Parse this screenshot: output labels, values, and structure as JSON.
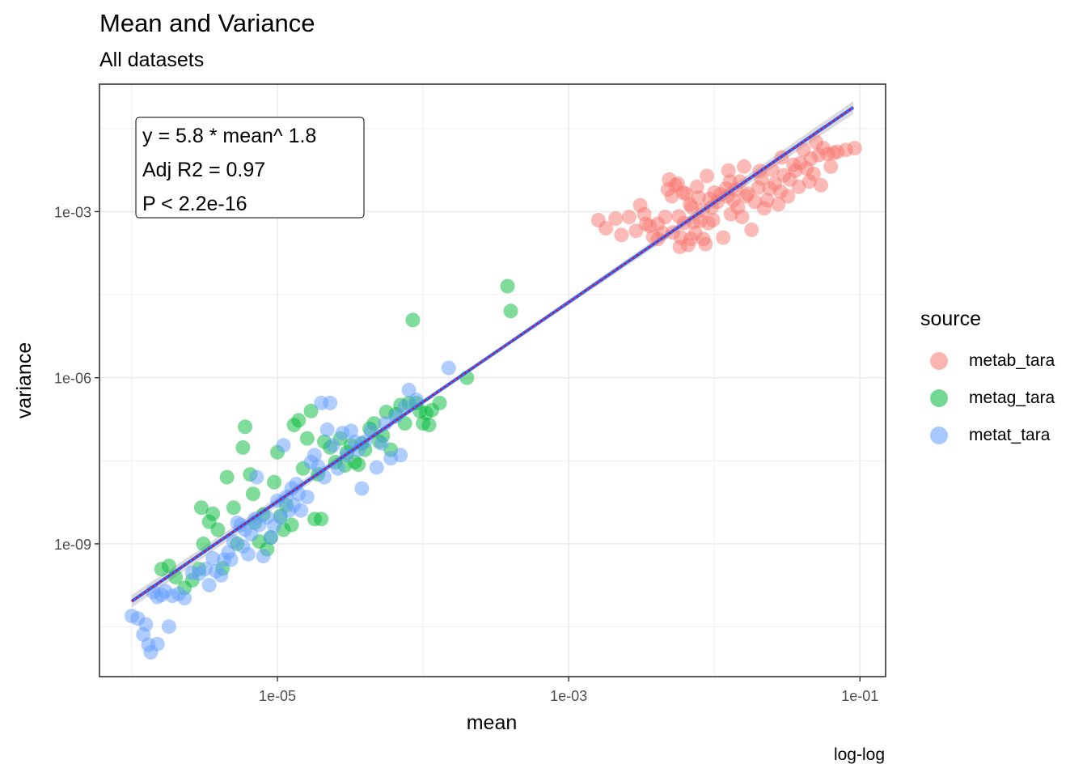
{
  "chart_data": {
    "type": "scatter",
    "title": "Mean and Variance",
    "subtitle": "All datasets",
    "caption": "log-log",
    "xlabel": "mean",
    "ylabel": "variance",
    "x_scale": "log10",
    "y_scale": "log10",
    "xlim": [
      6e-07,
      0.15
    ],
    "ylim": [
      4e-12,
      0.2
    ],
    "x_ticks": [
      {
        "value": 1e-05,
        "label": "1e-05"
      },
      {
        "value": 0.001,
        "label": "1e-03"
      },
      {
        "value": 0.1,
        "label": "1e-01"
      }
    ],
    "y_ticks": [
      {
        "value": 1e-09,
        "label": "1e-09"
      },
      {
        "value": 1e-06,
        "label": "1e-06"
      },
      {
        "value": 0.001,
        "label": "1e-03"
      }
    ],
    "grid": true,
    "legend_title": "source",
    "legend_position": "right",
    "fit": {
      "type": "power",
      "coefficient": 5.8,
      "exponent": 1.8,
      "x_range": [
        1e-06,
        0.09
      ],
      "annotation": [
        "y =  5.8 * mean^ 1.8",
        "Adj R2 =  0.97",
        "P < 2.2e-16"
      ]
    },
    "series": [
      {
        "name": "metab_tara",
        "color": "#F8766D",
        "points": [
          [
            0.0016,
            0.0007
          ],
          [
            0.0018,
            0.0005
          ],
          [
            0.0021,
            0.00075
          ],
          [
            0.0023,
            0.00038
          ],
          [
            0.0026,
            0.0008
          ],
          [
            0.0029,
            0.00045
          ],
          [
            0.0031,
            0.0013
          ],
          [
            0.0033,
            0.0009
          ],
          [
            0.0034,
            0.0006
          ],
          [
            0.0036,
            0.00055
          ],
          [
            0.0038,
            0.00035
          ],
          [
            0.0041,
            0.00032
          ],
          [
            0.0041,
            0.0006
          ],
          [
            0.0044,
            0.00041
          ],
          [
            0.0046,
            0.0008
          ],
          [
            0.0048,
            0.0025
          ],
          [
            0.0049,
            0.0038
          ],
          [
            0.0051,
            0.0019
          ],
          [
            0.0052,
            0.00042
          ],
          [
            0.0054,
            0.003
          ],
          [
            0.0056,
            0.0032
          ],
          [
            0.0057,
            0.00082
          ],
          [
            0.0058,
            0.00023
          ],
          [
            0.0059,
            0.00034
          ],
          [
            0.0061,
            0.0022
          ],
          [
            0.0062,
            0.00062
          ],
          [
            0.0064,
            0.0021
          ],
          [
            0.0066,
            0.00025
          ],
          [
            0.0068,
            0.00135
          ],
          [
            0.0069,
            0.00032
          ],
          [
            0.007,
            0.0012
          ],
          [
            0.0072,
            0.00065
          ],
          [
            0.0074,
            0.00041
          ],
          [
            0.0076,
            0.0028
          ],
          [
            0.0078,
            0.0018
          ],
          [
            0.008,
            0.00068
          ],
          [
            0.0083,
            0.00105
          ],
          [
            0.0084,
            0.00032
          ],
          [
            0.0087,
            0.00026
          ],
          [
            0.0089,
            0.0044
          ],
          [
            0.0091,
            0.00062
          ],
          [
            0.0093,
            0.0017
          ],
          [
            0.0096,
            0.0012
          ],
          [
            0.0098,
            0.0007
          ],
          [
            0.01,
            0.0022
          ],
          [
            0.0105,
            0.0015
          ],
          [
            0.011,
            0.00205
          ],
          [
            0.0115,
            0.00034
          ],
          [
            0.012,
            0.0026
          ],
          [
            0.0123,
            0.0019
          ],
          [
            0.0125,
            0.0055
          ],
          [
            0.0128,
            0.0035
          ],
          [
            0.013,
            0.0009
          ],
          [
            0.0135,
            0.0016
          ],
          [
            0.014,
            0.0025
          ],
          [
            0.0145,
            0.0012
          ],
          [
            0.015,
            0.0035
          ],
          [
            0.0155,
            0.0008
          ],
          [
            0.016,
            0.0065
          ],
          [
            0.0165,
            0.0019
          ],
          [
            0.017,
            0.0021
          ],
          [
            0.018,
            0.00047
          ],
          [
            0.019,
            0.0015
          ],
          [
            0.02,
            0.0027
          ],
          [
            0.0205,
            0.0054
          ],
          [
            0.021,
            0.004
          ],
          [
            0.022,
            0.00115
          ],
          [
            0.023,
            0.0016
          ],
          [
            0.024,
            0.0026
          ],
          [
            0.025,
            0.0057
          ],
          [
            0.026,
            0.0032
          ],
          [
            0.0275,
            0.00135
          ],
          [
            0.0285,
            0.0023
          ],
          [
            0.029,
            0.0095
          ],
          [
            0.03,
            0.0045
          ],
          [
            0.032,
            0.0019
          ],
          [
            0.033,
            0.0038
          ],
          [
            0.035,
            0.007
          ],
          [
            0.036,
            0.0055
          ],
          [
            0.038,
            0.0028
          ],
          [
            0.039,
            0.0075
          ],
          [
            0.041,
            0.013
          ],
          [
            0.043,
            0.006
          ],
          [
            0.045,
            0.0035
          ],
          [
            0.046,
            0.009
          ],
          [
            0.048,
            0.0048
          ],
          [
            0.05,
            0.018
          ],
          [
            0.052,
            0.0105
          ],
          [
            0.054,
            0.003
          ],
          [
            0.056,
            0.014
          ],
          [
            0.06,
            0.011
          ],
          [
            0.063,
            0.0065
          ],
          [
            0.066,
            0.0115
          ],
          [
            0.07,
            0.012
          ],
          [
            0.08,
            0.013
          ],
          [
            0.092,
            0.014
          ]
        ]
      },
      {
        "name": "metag_tara",
        "color": "#00BA38",
        "points": [
          [
            1.6e-06,
            3.5e-10
          ],
          [
            1.8e-06,
            4e-10
          ],
          [
            2e-06,
            2.5e-10
          ],
          [
            2.3e-06,
            1.6e-10
          ],
          [
            2.6e-06,
            2.2e-10
          ],
          [
            2.9e-06,
            3.5e-10
          ],
          [
            3e-06,
            4.5e-09
          ],
          [
            3.1e-06,
            1e-09
          ],
          [
            3.4e-06,
            2.5e-09
          ],
          [
            3.6e-06,
            3.5e-09
          ],
          [
            3.9e-06,
            1.8e-09
          ],
          [
            4.2e-06,
            3.6e-10
          ],
          [
            4.5e-06,
            1.6e-08
          ],
          [
            5e-06,
            4.5e-09
          ],
          [
            5.3e-06,
            1e-09
          ],
          [
            5.8e-06,
            5.5e-08
          ],
          [
            6e-06,
            1.3e-07
          ],
          [
            6.5e-06,
            1.8e-08
          ],
          [
            6.8e-06,
            8e-09
          ],
          [
            7e-06,
            2.4e-09
          ],
          [
            7.5e-06,
            1.1e-09
          ],
          [
            8e-06,
            3.4e-09
          ],
          [
            8.5e-06,
            8e-10
          ],
          [
            9e-06,
            1.3e-09
          ],
          [
            9.5e-06,
            1.3e-08
          ],
          [
            1e-05,
            4.5e-08
          ],
          [
            1.05e-05,
            3.2e-09
          ],
          [
            1.1e-05,
            1.8e-09
          ],
          [
            1.15e-05,
            5e-09
          ],
          [
            1.25e-05,
            2.2e-09
          ],
          [
            1.3e-05,
            1.4e-07
          ],
          [
            1.4e-05,
            1.7e-07
          ],
          [
            1.5e-05,
            2.3e-08
          ],
          [
            1.6e-05,
            8e-08
          ],
          [
            1.7e-05,
            2.5e-07
          ],
          [
            1.8e-05,
            2.8e-09
          ],
          [
            1.9e-05,
            1.8e-08
          ],
          [
            2e-05,
            2.8e-09
          ],
          [
            2.1e-05,
            7e-08
          ],
          [
            2.3e-05,
            5.5e-08
          ],
          [
            2.5e-05,
            3e-08
          ],
          [
            2.7e-05,
            8e-08
          ],
          [
            2.9e-05,
            2.6e-08
          ],
          [
            3e-05,
            4.5e-08
          ],
          [
            3.2e-05,
            6e-08
          ],
          [
            3.4e-05,
            3e-08
          ],
          [
            3.6e-05,
            2.7e-08
          ],
          [
            3.8e-05,
            6.5e-08
          ],
          [
            4e-05,
            5e-08
          ],
          [
            4.3e-05,
            1.2e-07
          ],
          [
            4.6e-05,
            1.5e-07
          ],
          [
            5e-05,
            7e-08
          ],
          [
            5.3e-05,
            9e-08
          ],
          [
            5.6e-05,
            2.4e-07
          ],
          [
            6e-05,
            5e-08
          ],
          [
            6.5e-05,
            2.2e-07
          ],
          [
            7e-05,
            3.2e-07
          ],
          [
            7.5e-05,
            1.5e-07
          ],
          [
            8e-05,
            3.5e-07
          ],
          [
            8.5e-05,
            1.1e-05
          ],
          [
            9e-05,
            3.5e-07
          ],
          [
            9.5e-05,
            2.5e-07
          ],
          [
            0.0001,
            1.5e-07
          ],
          [
            0.000105,
            2.3e-07
          ],
          [
            0.00011,
            1.4e-07
          ],
          [
            0.000115,
            2.6e-07
          ],
          [
            0.00013,
            3.5e-07
          ],
          [
            0.0002,
            1e-06
          ],
          [
            0.00038,
            4.5e-05
          ],
          [
            0.0004,
            1.6e-05
          ]
        ]
      },
      {
        "name": "metat_tara",
        "color": "#619CFF",
        "points": [
          [
            1e-06,
            5e-11
          ],
          [
            1.1e-06,
            4.5e-11
          ],
          [
            1.2e-06,
            2.3e-11
          ],
          [
            1.25e-06,
            3.5e-11
          ],
          [
            1.3e-06,
            1.5e-11
          ],
          [
            1.35e-06,
            1.1e-11
          ],
          [
            1.4e-06,
            1.35e-10
          ],
          [
            1.5e-06,
            1.1e-10
          ],
          [
            1.5e-06,
            1.55e-11
          ],
          [
            1.6e-06,
            1.2e-10
          ],
          [
            1.7e-06,
            1.4e-10
          ],
          [
            1.8e-06,
            3.2e-11
          ],
          [
            1.9e-06,
            1.15e-10
          ],
          [
            2.1e-06,
            1.25e-10
          ],
          [
            2.3e-06,
            1.05e-10
          ],
          [
            2.6e-06,
            3e-10
          ],
          [
            2.9e-06,
            2.9e-10
          ],
          [
            3.2e-06,
            3.5e-10
          ],
          [
            3.4e-06,
            1.8e-10
          ],
          [
            3.6e-06,
            5.5e-10
          ],
          [
            3.8e-06,
            3.2e-10
          ],
          [
            4.1e-06,
            2.7e-10
          ],
          [
            4.3e-06,
            5.2e-10
          ],
          [
            4.6e-06,
            7e-10
          ],
          [
            4.8e-06,
            5.2e-10
          ],
          [
            5e-06,
            1.1e-09
          ],
          [
            5.3e-06,
            2.4e-09
          ],
          [
            5.6e-06,
            2.2e-09
          ],
          [
            5.8e-06,
            9e-10
          ],
          [
            6e-06,
            1.8e-09
          ],
          [
            6.3e-06,
            6.5e-10
          ],
          [
            6.6e-06,
            1.5e-09
          ],
          [
            7e-06,
            2.8e-09
          ],
          [
            7.2e-06,
            1.6e-08
          ],
          [
            7.5e-06,
            2.2e-09
          ],
          [
            8e-06,
            6e-10
          ],
          [
            8.5e-06,
            3e-09
          ],
          [
            9e-06,
            1.3e-09
          ],
          [
            9.5e-06,
            2.1e-09
          ],
          [
            1e-05,
            6e-09
          ],
          [
            1.05e-05,
            3e-09
          ],
          [
            1.1e-05,
            6e-08
          ],
          [
            1.15e-05,
            7e-09
          ],
          [
            1.2e-05,
            4e-09
          ],
          [
            1.25e-05,
            1e-08
          ],
          [
            1.3e-05,
            5e-09
          ],
          [
            1.35e-05,
            1.2e-08
          ],
          [
            1.4e-05,
            8e-09
          ],
          [
            1.45e-05,
            4e-09
          ],
          [
            1.6e-05,
            7e-09
          ],
          [
            1.7e-05,
            3e-08
          ],
          [
            1.8e-05,
            4e-08
          ],
          [
            1.9e-05,
            2.5e-08
          ],
          [
            2e-05,
            3.5e-07
          ],
          [
            2.1e-05,
            1.6e-08
          ],
          [
            2.2e-05,
            1.15e-07
          ],
          [
            2.3e-05,
            3.5e-07
          ],
          [
            2.4e-05,
            6e-08
          ],
          [
            2.6e-05,
            2.3e-08
          ],
          [
            2.8e-05,
            1e-07
          ],
          [
            3e-05,
            4e-08
          ],
          [
            3.2e-05,
            1.1e-07
          ],
          [
            3.4e-05,
            7e-08
          ],
          [
            3.6e-05,
            5e-08
          ],
          [
            3.8e-05,
            1e-08
          ],
          [
            4e-05,
            7e-08
          ],
          [
            4.4e-05,
            1.1e-07
          ],
          [
            4.8e-05,
            2.4e-08
          ],
          [
            5.2e-05,
            6.5e-08
          ],
          [
            5.5e-05,
            1.5e-07
          ],
          [
            6e-05,
            3.5e-08
          ],
          [
            6.5e-05,
            2e-07
          ],
          [
            7e-05,
            4e-08
          ],
          [
            7.5e-05,
            3e-07
          ],
          [
            8e-05,
            6e-07
          ],
          [
            9e-05,
            4e-07
          ],
          [
            0.00015,
            1.5e-06
          ]
        ]
      }
    ]
  }
}
